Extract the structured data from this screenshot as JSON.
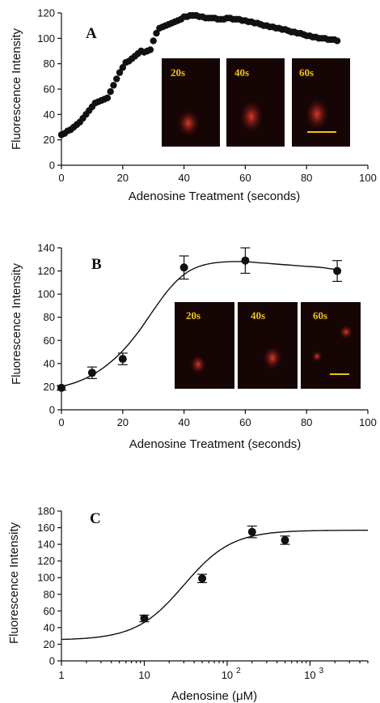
{
  "chart_data": [
    {
      "panel": "A",
      "type": "scatter",
      "xlabel": "Adenosine Treatment (seconds)",
      "ylabel": "Fluorescence Intensity",
      "xlim": [
        0,
        100
      ],
      "ylim": [
        0,
        120
      ],
      "xticks": [
        "0",
        "20",
        "40",
        "60",
        "80",
        "100"
      ],
      "yticks": [
        "0",
        "20",
        "40",
        "60",
        "80",
        "100",
        "120"
      ],
      "series": [
        {
          "x": [
            0,
            1,
            2,
            3,
            4,
            5,
            6,
            7,
            8,
            9,
            10,
            11,
            12,
            13,
            14,
            15,
            16,
            17,
            18,
            19,
            20,
            21,
            22,
            23,
            24,
            25,
            26,
            27,
            28,
            29,
            30,
            31,
            32,
            33,
            34,
            35,
            36,
            37,
            38,
            39,
            40,
            41,
            42,
            43,
            44,
            45,
            46,
            47,
            48,
            49,
            50,
            51,
            52,
            53,
            54,
            55,
            56,
            57,
            58,
            59,
            60,
            61,
            62,
            63,
            64,
            65,
            66,
            67,
            68,
            69,
            70,
            71,
            72,
            73,
            74,
            75,
            76,
            77,
            78,
            79,
            80,
            81,
            82,
            83,
            84,
            85,
            86,
            87,
            88,
            89,
            90
          ],
          "y": [
            24,
            25,
            27,
            28,
            30,
            32,
            34,
            37,
            40,
            43,
            46,
            49,
            50,
            51,
            52,
            53,
            58,
            63,
            68,
            73,
            77,
            81,
            82,
            84,
            86,
            88,
            90,
            89,
            90,
            91,
            98,
            104,
            108,
            109,
            110,
            111,
            112,
            113,
            114,
            115,
            117,
            117,
            118,
            118,
            118,
            117,
            117,
            116,
            116,
            116,
            116,
            115,
            115,
            115,
            116,
            116,
            115,
            115,
            115,
            114,
            114,
            113,
            113,
            112,
            112,
            111,
            110,
            110,
            109,
            109,
            108,
            108,
            107,
            107,
            106,
            105,
            105,
            104,
            104,
            103,
            102,
            102,
            101,
            101,
            100,
            100,
            100,
            99,
            99,
            99,
            98
          ]
        }
      ],
      "inset_labels": [
        "20s",
        "40s",
        "60s"
      ]
    },
    {
      "panel": "B",
      "type": "scatter",
      "xlabel": "Adenosine Treatment (seconds)",
      "ylabel": "Fluorescence Intensity",
      "xlim": [
        0,
        100
      ],
      "ylim": [
        0,
        140
      ],
      "xticks": [
        "0",
        "20",
        "40",
        "60",
        "80",
        "100"
      ],
      "yticks": [
        "0",
        "20",
        "40",
        "60",
        "80",
        "100",
        "120",
        "140"
      ],
      "series": [
        {
          "x": [
            0,
            10,
            20,
            40,
            60,
            90
          ],
          "y": [
            19,
            32,
            44,
            123,
            129,
            120
          ],
          "err": [
            2,
            5,
            5,
            10,
            11,
            9
          ]
        }
      ],
      "fit": {
        "x": [
          0,
          5,
          10,
          15,
          20,
          25,
          30,
          35,
          40,
          45,
          50,
          55,
          60,
          65,
          70,
          75,
          80,
          85,
          90
        ],
        "y": [
          20,
          24,
          30,
          39,
          51,
          67,
          86,
          104,
          117,
          124,
          127,
          128,
          128,
          127,
          126,
          125,
          124,
          123,
          121
        ]
      },
      "inset_labels": [
        "20s",
        "40s",
        "60s"
      ]
    },
    {
      "panel": "C",
      "type": "scatter",
      "xlabel": "Adenosine (μM)",
      "ylabel": "Fluorescence Intensity",
      "xscale": "log",
      "xlim": [
        1,
        5000
      ],
      "ylim": [
        0,
        180
      ],
      "xticks": [
        "1",
        "10",
        "10",
        "10"
      ],
      "xtick_exponents": [
        "",
        "",
        "2",
        "3"
      ],
      "yticks": [
        "0",
        "20",
        "40",
        "60",
        "80",
        "100",
        "120",
        "140",
        "160",
        "180"
      ],
      "series": [
        {
          "x": [
            10,
            50,
            200,
            500
          ],
          "y": [
            51,
            99,
            155,
            145
          ],
          "err": [
            4,
            5,
            7,
            5
          ]
        }
      ],
      "fit": {
        "bottom": 25,
        "top": 157,
        "ec50": 30,
        "hill": 1.5
      }
    }
  ]
}
